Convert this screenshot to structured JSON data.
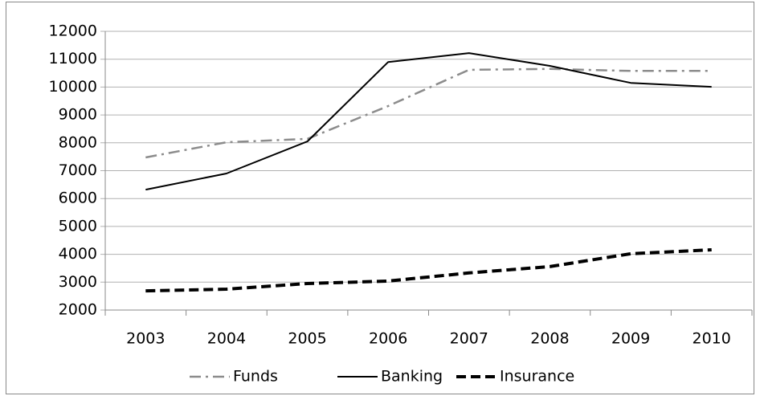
{
  "chart_data": {
    "type": "line",
    "categories": [
      "2003",
      "2004",
      "2005",
      "2006",
      "2007",
      "2008",
      "2009",
      "2010"
    ],
    "series": [
      {
        "name": "Funds",
        "color": "#8c8c8c",
        "style": "dashdot",
        "values": [
          7475,
          8020,
          8140,
          9320,
          10620,
          10650,
          10580,
          10580
        ]
      },
      {
        "name": "Banking",
        "color": "#000000",
        "style": "solid",
        "values": [
          6320,
          6900,
          8050,
          10900,
          11220,
          10760,
          10150,
          10010
        ]
      },
      {
        "name": "Insurance",
        "color": "#000000",
        "style": "dashed",
        "values": [
          2690,
          2750,
          2950,
          3040,
          3330,
          3560,
          4020,
          4160
        ]
      }
    ],
    "ylim": [
      2000,
      12000
    ],
    "yticks": [
      2000,
      3000,
      4000,
      5000,
      6000,
      7000,
      8000,
      9000,
      10000,
      11000,
      12000
    ],
    "grid": true,
    "legend": "bottom"
  }
}
